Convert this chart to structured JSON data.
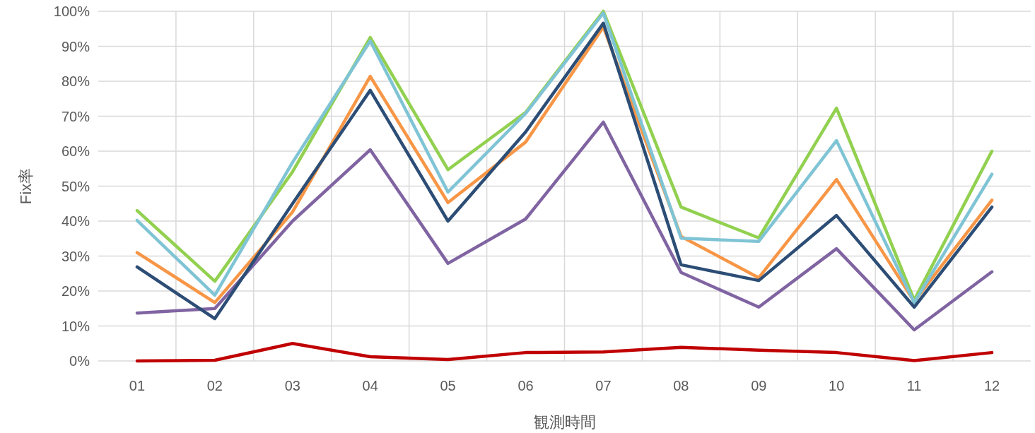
{
  "chart_data": {
    "type": "line",
    "xlabel": "観測時間",
    "ylabel": "Fix率",
    "categories": [
      "01",
      "02",
      "03",
      "04",
      "05",
      "06",
      "07",
      "08",
      "09",
      "10",
      "11",
      "12"
    ],
    "series": [
      {
        "color": "#c00000",
        "values": [
          0,
          0.2,
          5.0,
          1.2,
          0.4,
          2.4,
          2.6,
          3.9,
          3.1,
          2.4,
          0.1,
          2.4
        ]
      },
      {
        "color": "#8064a2",
        "values": [
          13.7,
          15.0,
          40.0,
          60.4,
          27.9,
          40.6,
          68.3,
          25.3,
          15.4,
          32.1,
          8.9,
          25.5
        ]
      },
      {
        "color": "#f79646",
        "values": [
          31.0,
          16.7,
          42.6,
          81.4,
          45.3,
          62.6,
          95.5,
          35.6,
          23.8,
          51.9,
          17.0,
          46.0
        ]
      },
      {
        "color": "#92d050",
        "values": [
          43.0,
          22.8,
          54.1,
          92.5,
          54.7,
          71.1,
          100,
          44.0,
          35.2,
          72.3,
          17.4,
          60.0
        ]
      },
      {
        "color": "#7fc4d5",
        "values": [
          40.2,
          18.8,
          56.8,
          91.5,
          48.3,
          70.8,
          99.5,
          35.1,
          34.2,
          63.0,
          16.7,
          53.4
        ]
      },
      {
        "color": "#2c4d75",
        "values": [
          26.9,
          12.1,
          45.0,
          77.4,
          40.0,
          65.5,
          96.6,
          27.5,
          23.0,
          41.6,
          15.4,
          44.0
        ]
      }
    ],
    "ylim": [
      0,
      100
    ],
    "yticks": [
      {
        "value": 0,
        "label": "0%"
      },
      {
        "value": 10,
        "label": "10%"
      },
      {
        "value": 20,
        "label": "20%"
      },
      {
        "value": 30,
        "label": "30%"
      },
      {
        "value": 40,
        "label": "40%"
      },
      {
        "value": 50,
        "label": "50%"
      },
      {
        "value": 60,
        "label": "60%"
      },
      {
        "value": 70,
        "label": "70%"
      },
      {
        "value": 80,
        "label": "80%"
      },
      {
        "value": 90,
        "label": "90%"
      },
      {
        "value": 100,
        "label": "100%"
      }
    ],
    "grid": true,
    "line_style": "solid"
  }
}
